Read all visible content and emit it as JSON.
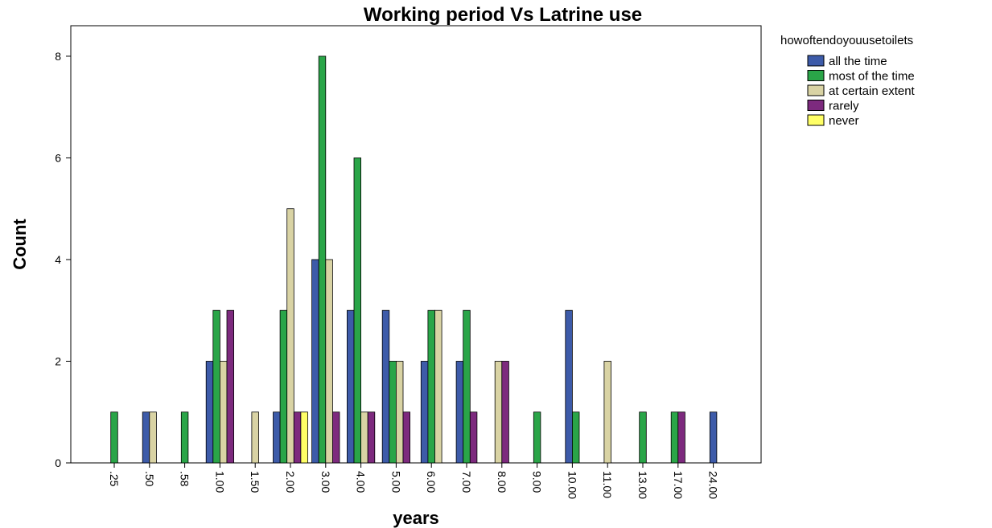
{
  "chart_data": {
    "type": "bar",
    "title": "Working period Vs Latrine use",
    "xlabel": "years",
    "ylabel": "Count",
    "ylim": [
      0,
      8.6
    ],
    "yticks": [
      0,
      2,
      4,
      6,
      8
    ],
    "grid": false,
    "legend_title": "howoftendoyouusetoilets",
    "legend_position": "top-right",
    "categories": [
      ".25",
      ".50",
      ".58",
      "1.00",
      "1.50",
      "2.00",
      "3.00",
      "4.00",
      "5.00",
      "6.00",
      "7.00",
      "8.00",
      "9.00",
      "10.00",
      "11.00",
      "13.00",
      "17.00",
      "24.00"
    ],
    "series": [
      {
        "name": "all the time",
        "color": "#3d5ba9",
        "values": [
          0,
          1,
          0,
          2,
          0,
          1,
          4,
          3,
          3,
          2,
          2,
          0,
          0,
          3,
          0,
          0,
          0,
          1
        ]
      },
      {
        "name": "most of the time",
        "color": "#2aa548",
        "values": [
          1,
          0,
          1,
          3,
          0,
          3,
          8,
          6,
          2,
          3,
          3,
          0,
          1,
          1,
          0,
          1,
          1,
          0
        ]
      },
      {
        "name": "at certain extent",
        "color": "#d9d3a4",
        "values": [
          0,
          1,
          0,
          2,
          1,
          5,
          4,
          1,
          2,
          3,
          0,
          2,
          0,
          0,
          2,
          0,
          0,
          0
        ]
      },
      {
        "name": "rarely",
        "color": "#7d2a7e",
        "values": [
          0,
          0,
          0,
          3,
          0,
          1,
          1,
          1,
          1,
          0,
          1,
          2,
          0,
          0,
          0,
          0,
          1,
          0
        ]
      },
      {
        "name": "never",
        "color": "#ffff66",
        "values": [
          0,
          0,
          0,
          0,
          0,
          1,
          0,
          0,
          0,
          0,
          0,
          0,
          0,
          0,
          0,
          0,
          0,
          0
        ]
      }
    ]
  }
}
